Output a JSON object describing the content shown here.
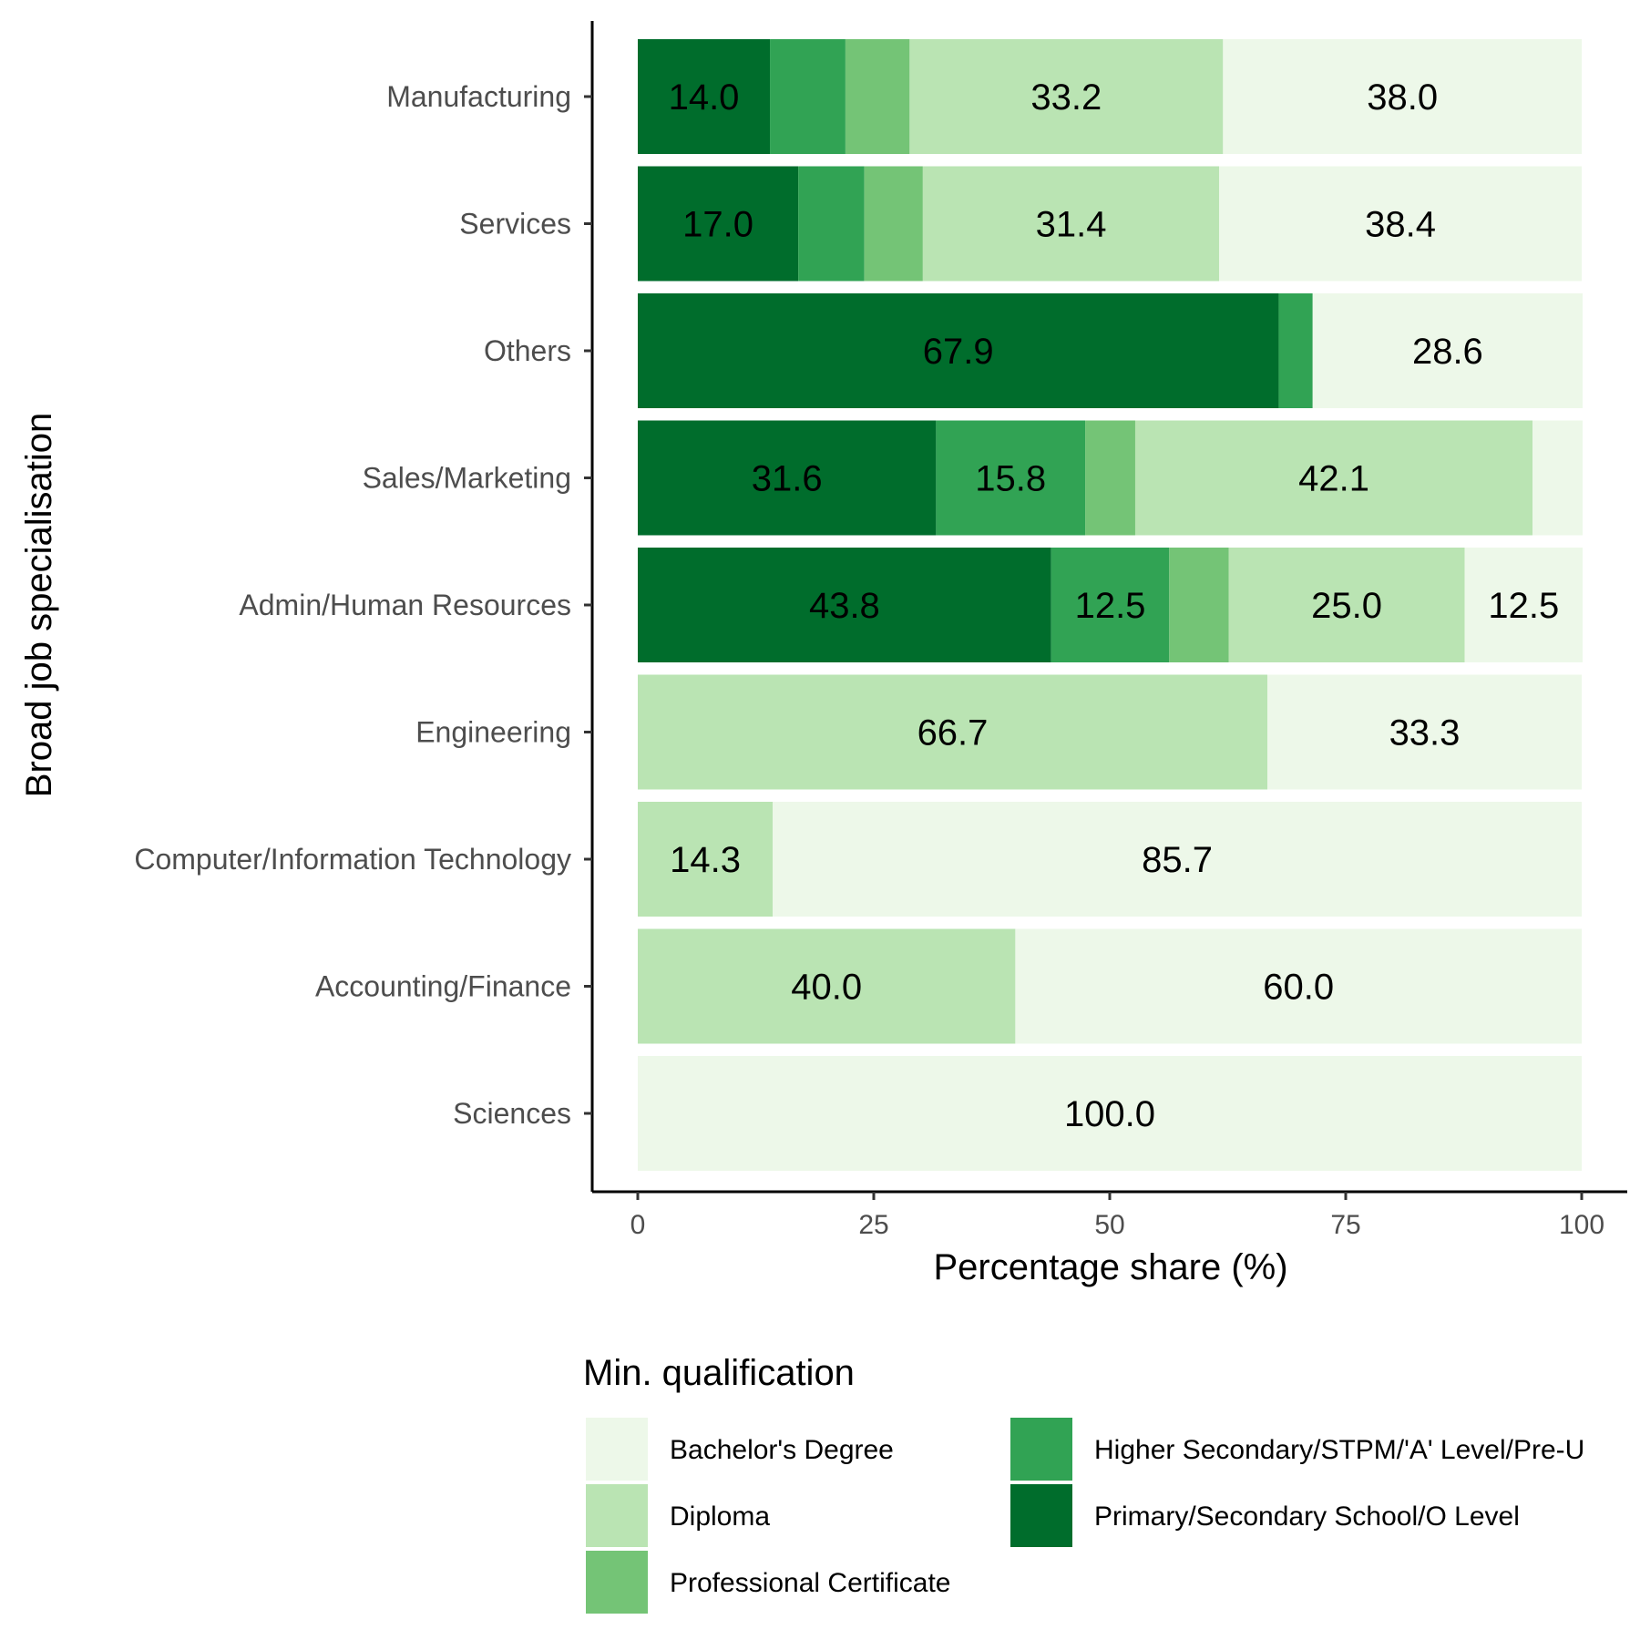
{
  "chart_data": {
    "type": "bar",
    "orientation": "horizontal",
    "stacked": true,
    "xlabel": "Percentage share (%)",
    "ylabel": "Broad job specialisation",
    "xlim": [
      0,
      100
    ],
    "xticks": [
      "0",
      "25",
      "50",
      "75",
      "100"
    ],
    "categories": [
      "Manufacturing",
      "Services",
      "Others",
      "Sales/Marketing",
      "Admin/Human Resources",
      "Engineering",
      "Computer/Information Technology",
      "Accounting/Finance",
      "Sciences"
    ],
    "series": [
      {
        "name": "Primary/Secondary School/O Level",
        "color": "#006d2c",
        "values": [
          14.0,
          17.0,
          67.9,
          31.6,
          43.8,
          0,
          0,
          0,
          0
        ]
      },
      {
        "name": "Higher Secondary/STPM/'A' Level/Pre-U",
        "color": "#31a354",
        "values": [
          8.0,
          7.0,
          3.6,
          15.8,
          12.5,
          0,
          0,
          0,
          0
        ]
      },
      {
        "name": "Professional Certificate",
        "color": "#74c476",
        "values": [
          6.8,
          6.2,
          0,
          5.3,
          6.3,
          0,
          0,
          0,
          0
        ]
      },
      {
        "name": "Diploma",
        "color": "#bae4b3",
        "values": [
          33.2,
          31.4,
          0,
          42.1,
          25.0,
          66.7,
          14.3,
          40.0,
          0
        ]
      },
      {
        "name": "Bachelor's Degree",
        "color": "#edf8e9",
        "values": [
          38.0,
          38.4,
          28.6,
          5.3,
          12.5,
          33.3,
          85.7,
          60.0,
          100.0
        ]
      }
    ],
    "data_labels": [
      [
        {
          "series": 0,
          "text": "14.0"
        },
        {
          "series": 3,
          "text": "33.2"
        },
        {
          "series": 4,
          "text": "38.0"
        }
      ],
      [
        {
          "series": 0,
          "text": "17.0"
        },
        {
          "series": 3,
          "text": "31.4"
        },
        {
          "series": 4,
          "text": "38.4"
        }
      ],
      [
        {
          "series": 0,
          "text": "67.9"
        },
        {
          "series": 4,
          "text": "28.6"
        }
      ],
      [
        {
          "series": 0,
          "text": "31.6"
        },
        {
          "series": 1,
          "text": "15.8"
        },
        {
          "series": 3,
          "text": "42.1"
        }
      ],
      [
        {
          "series": 0,
          "text": "43.8"
        },
        {
          "series": 1,
          "text": "12.5"
        },
        {
          "series": 3,
          "text": "25.0"
        },
        {
          "series": 4,
          "text": "12.5"
        }
      ],
      [
        {
          "series": 3,
          "text": "66.7"
        },
        {
          "series": 4,
          "text": "33.3"
        }
      ],
      [
        {
          "series": 3,
          "text": "14.3"
        },
        {
          "series": 4,
          "text": "85.7"
        }
      ],
      [
        {
          "series": 3,
          "text": "40.0"
        },
        {
          "series": 4,
          "text": "60.0"
        }
      ],
      [
        {
          "series": 4,
          "text": "100.0"
        }
      ]
    ],
    "legend": {
      "title": "Min. qualification",
      "position": "bottom",
      "items": [
        {
          "label": "Bachelor's Degree",
          "color": "#edf8e9"
        },
        {
          "label": "Diploma",
          "color": "#bae4b3"
        },
        {
          "label": "Professional Certificate",
          "color": "#74c476"
        },
        {
          "label": "Higher Secondary/STPM/'A' Level/Pre-U",
          "color": "#31a354"
        },
        {
          "label": "Primary/Secondary School/O Level",
          "color": "#006d2c"
        }
      ]
    },
    "grid": false
  }
}
